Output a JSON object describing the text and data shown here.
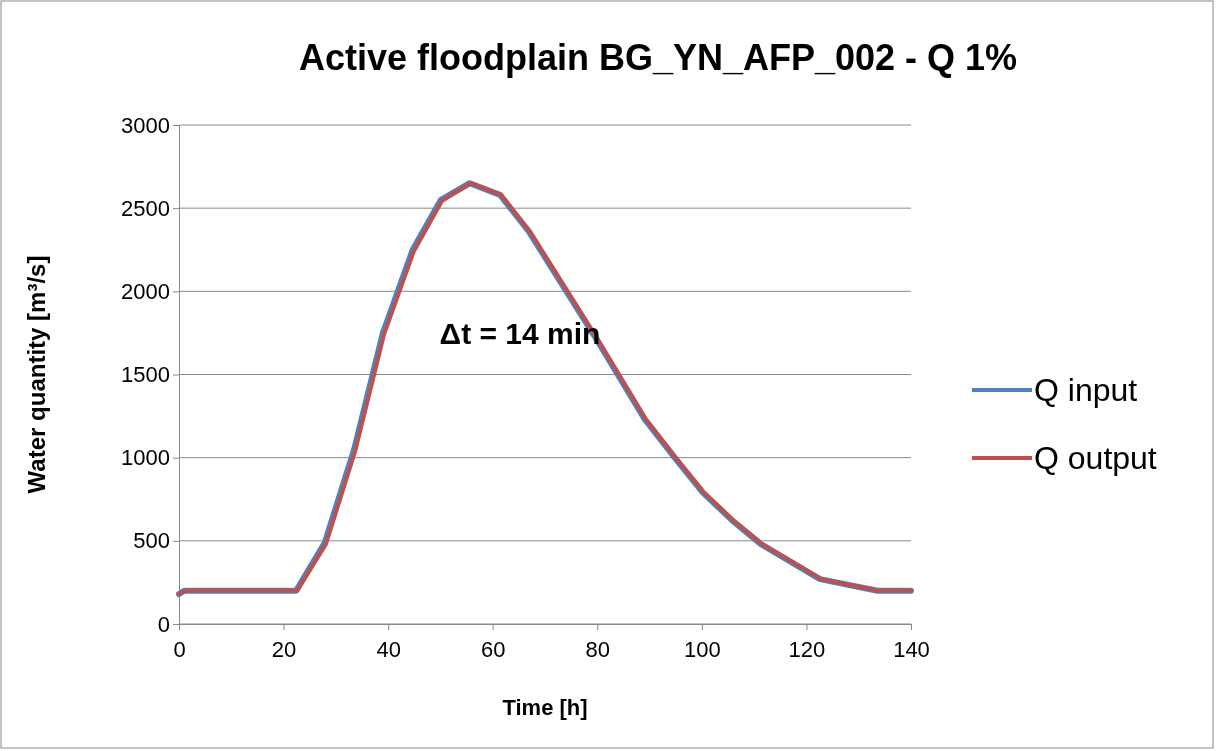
{
  "chart_data": {
    "type": "line",
    "title": "Active floodplain BG_YN_AFP_002 - Q 1%",
    "xlabel": "Time [h]",
    "ylabel": "Water quantity [m³/s]",
    "xlim": [
      0,
      140
    ],
    "xticks": [
      0,
      20,
      40,
      60,
      80,
      100,
      120,
      140
    ],
    "ylim": [
      0,
      3000
    ],
    "yticks": [
      0,
      500,
      1000,
      1500,
      2000,
      2500,
      3000
    ],
    "grid": "y",
    "legend": "right",
    "line_style": "solid",
    "annotations": [
      "Δt = 14 min"
    ],
    "series": [
      {
        "name": "Q input",
        "color": "#4f81bd",
        "x": [
          0,
          1,
          22.4,
          27.9,
          33.5,
          39,
          44.7,
          50.1,
          55.6,
          61.4,
          66.9,
          79.9,
          89.1,
          94.8,
          100.2,
          105.9,
          111.3,
          122.6,
          133.6,
          140
        ],
        "values": [
          180,
          200,
          200,
          490,
          1050,
          1750,
          2250,
          2550,
          2650,
          2580,
          2360,
          1710,
          1230,
          1000,
          790,
          620,
          480,
          270,
          200,
          200
        ]
      },
      {
        "name": "Q output",
        "color": "#c0504d",
        "x": [
          0,
          1.2,
          22.6,
          28.1,
          33.7,
          39.2,
          44.9,
          50.3,
          55.8,
          61.6,
          67.1,
          80.1,
          89.3,
          95,
          100.4,
          106.1,
          111.5,
          122.8,
          133.8,
          140
        ],
        "values": [
          180,
          200,
          200,
          480,
          1040,
          1740,
          2240,
          2545,
          2650,
          2580,
          2360,
          1710,
          1230,
          1000,
          790,
          620,
          480,
          270,
          200,
          200
        ]
      }
    ]
  }
}
